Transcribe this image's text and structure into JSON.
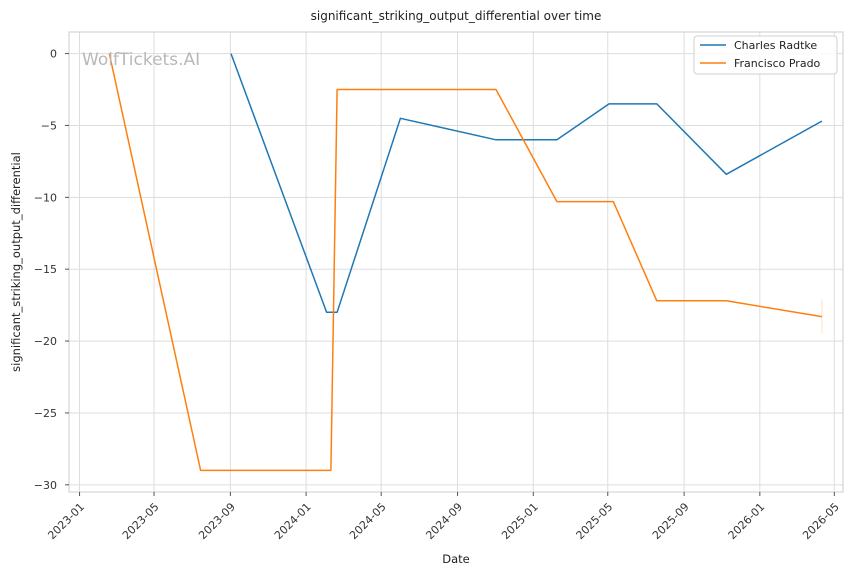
{
  "chart_data": {
    "type": "line",
    "title": "significant_striking_output_differential over time",
    "xlabel": "Date",
    "ylabel": "significant_striking_output_differential",
    "watermark": "WolfTickets.AI",
    "x_ticks": [
      "2023-01",
      "2023-05",
      "2023-09",
      "2024-01",
      "2024-05",
      "2024-09",
      "2025-01",
      "2025-05",
      "2025-09",
      "2026-01",
      "2026-05"
    ],
    "y_ticks": [
      0,
      -5,
      -10,
      -15,
      -20,
      -25,
      -30
    ],
    "xlim": [
      "2022-12-15",
      "2026-05-15"
    ],
    "ylim": [
      -30.5,
      1.5
    ],
    "grid": true,
    "legend_position": "top-right",
    "series": [
      {
        "name": "Charles Radtke",
        "color": "#1f77b4",
        "points": [
          {
            "x": "2023-09-02",
            "y": 0
          },
          {
            "x": "2024-02-03",
            "y": -18
          },
          {
            "x": "2024-02-20",
            "y": -18
          },
          {
            "x": "2024-06-01",
            "y": -4.5
          },
          {
            "x": "2024-11-02",
            "y": -6
          },
          {
            "x": "2025-02-08",
            "y": -6
          },
          {
            "x": "2025-05-03",
            "y": -3.5
          },
          {
            "x": "2025-07-19",
            "y": -3.5
          },
          {
            "x": "2025-11-08",
            "y": -8.4
          },
          {
            "x": "2026-04-11",
            "y": -4.7
          }
        ]
      },
      {
        "name": "Francisco Prado",
        "color": "#ff7f0e",
        "points": [
          {
            "x": "2023-02-18",
            "y": 0
          },
          {
            "x": "2023-07-15",
            "y": -29
          },
          {
            "x": "2024-02-10",
            "y": -29
          },
          {
            "x": "2024-02-20",
            "y": -2.5
          },
          {
            "x": "2024-11-02",
            "y": -2.5
          },
          {
            "x": "2025-02-08",
            "y": -10.3
          },
          {
            "x": "2025-05-10",
            "y": -10.3
          },
          {
            "x": "2025-07-19",
            "y": -17.2
          },
          {
            "x": "2025-11-08",
            "y": -17.2
          },
          {
            "x": "2026-04-11",
            "y": -18.3
          }
        ]
      }
    ]
  }
}
